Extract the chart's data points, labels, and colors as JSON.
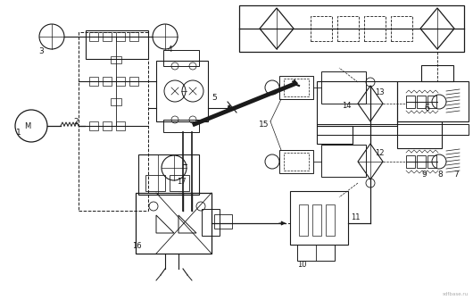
{
  "bg_color": "#ffffff",
  "line_color": "#1a1a1a",
  "figsize": [
    5.3,
    3.36
  ],
  "dpi": 100,
  "watermark": "sdfbase.ru"
}
